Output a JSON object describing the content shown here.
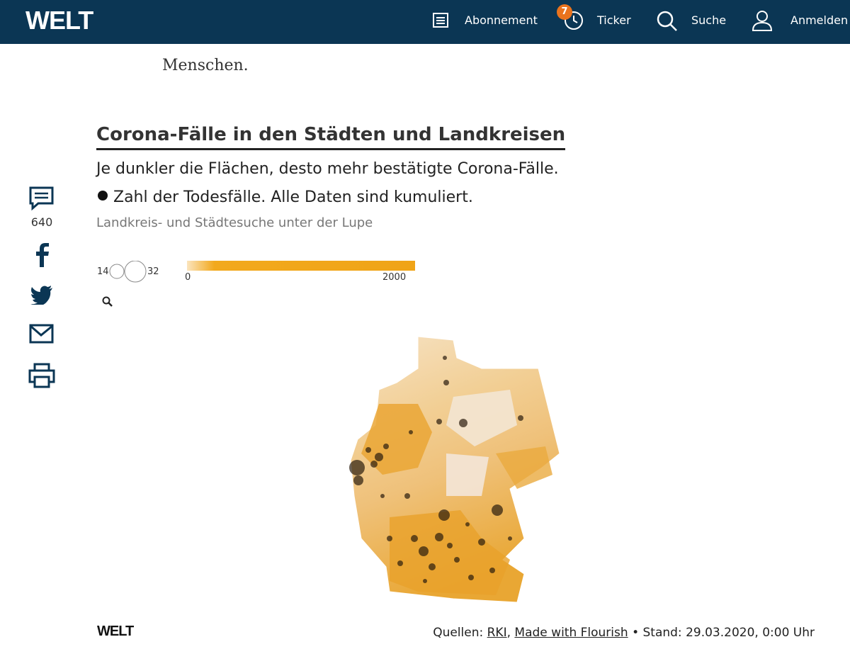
{
  "header": {
    "logo": "WELT",
    "nav": [
      {
        "label": "Abonnement"
      },
      {
        "label": "Ticker",
        "badge": 7
      },
      {
        "label": "Suche"
      },
      {
        "label": "Anmelden"
      }
    ]
  },
  "article": {
    "text": "Menschen."
  },
  "share": {
    "comments": 640
  },
  "graphic": {
    "title": "Corona-Fälle in den Städten und Landkreisen",
    "subtitle": "Je dunkler die Flächen, desto mehr bestätigte Corona-Fälle.",
    "note": "Zahl der Todesfälle. Alle Daten sind kumuliert.",
    "search_hint": "Landkreis- und Städtesuche unter der Lupe",
    "legend": {
      "size_min": 14,
      "size_max": 32,
      "color_min": 0,
      "color_max": 2000
    }
  },
  "footer": {
    "logo": "WELT",
    "sources_label": "Quellen:",
    "links": [
      "RKI",
      "Made with Flourish"
    ],
    "separator": ",",
    "stand": "• Stand: 29.03.2020, 0:00 Uhr"
  }
}
